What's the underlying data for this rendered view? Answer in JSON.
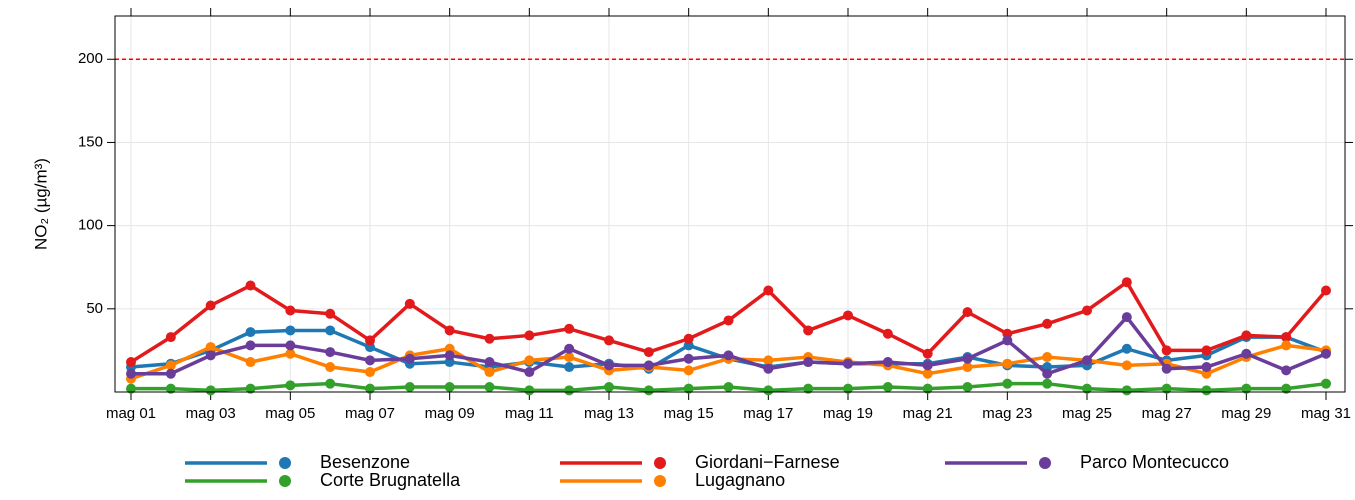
{
  "chart_data": {
    "type": "line",
    "y_label": "NO₂ (µg/m³)",
    "categories": [
      "mag 01",
      null,
      "mag 03",
      null,
      "mag 05",
      null,
      "mag 07",
      null,
      "mag 09",
      null,
      "mag 11",
      null,
      "mag 13",
      null,
      "mag 15",
      null,
      "mag 17",
      null,
      "mag 19",
      null,
      "mag 21",
      null,
      "mag 23",
      null,
      "mag 25",
      null,
      "mag 27",
      null,
      "mag 29",
      null,
      "mag 31"
    ],
    "ylim": [
      0,
      226
    ],
    "yticks": [
      50,
      100,
      150,
      200
    ],
    "grid": true,
    "threshold": 200,
    "threshold_color": "#ff0000",
    "legend": "bottom",
    "series": [
      {
        "name": "Besenzone",
        "color": "#1f78b4",
        "values": [
          15,
          17,
          25,
          36,
          37,
          37,
          27,
          17,
          18,
          15,
          18,
          15,
          17,
          14,
          28,
          20,
          15,
          18,
          17,
          17,
          17,
          21,
          16,
          15,
          16,
          26,
          19,
          22,
          33,
          33,
          24
        ]
      },
      {
        "name": "Corte Brugnatella",
        "color": "#33a02c",
        "values": [
          2,
          2,
          1,
          2,
          4,
          5,
          2,
          3,
          3,
          3,
          1,
          1,
          3,
          1,
          2,
          3,
          1,
          2,
          2,
          3,
          2,
          3,
          5,
          5,
          2,
          1,
          2,
          1,
          2,
          2,
          5
        ]
      },
      {
        "name": "Giordani−Farnese",
        "color": "#e31a1c",
        "values": [
          18,
          33,
          52,
          64,
          49,
          47,
          31,
          53,
          37,
          32,
          34,
          38,
          31,
          24,
          32,
          43,
          61,
          37,
          46,
          35,
          23,
          48,
          35,
          41,
          49,
          66,
          25,
          25,
          34,
          33,
          61
        ]
      },
      {
        "name": "Lugagnano",
        "color": "#ff7f00",
        "values": [
          8,
          16,
          27,
          18,
          23,
          15,
          12,
          22,
          26,
          12,
          19,
          21,
          13,
          15,
          13,
          20,
          19,
          21,
          18,
          16,
          11,
          15,
          17,
          21,
          19,
          16,
          17,
          11,
          21,
          28,
          25
        ]
      },
      {
        "name": "Parco Montecucco",
        "color": "#6a3d9a",
        "values": [
          11,
          11,
          22,
          28,
          28,
          24,
          19,
          20,
          22,
          18,
          12,
          26,
          16,
          16,
          20,
          22,
          14,
          18,
          17,
          18,
          16,
          20,
          31,
          11,
          19,
          45,
          14,
          15,
          23,
          13,
          23
        ]
      }
    ]
  }
}
